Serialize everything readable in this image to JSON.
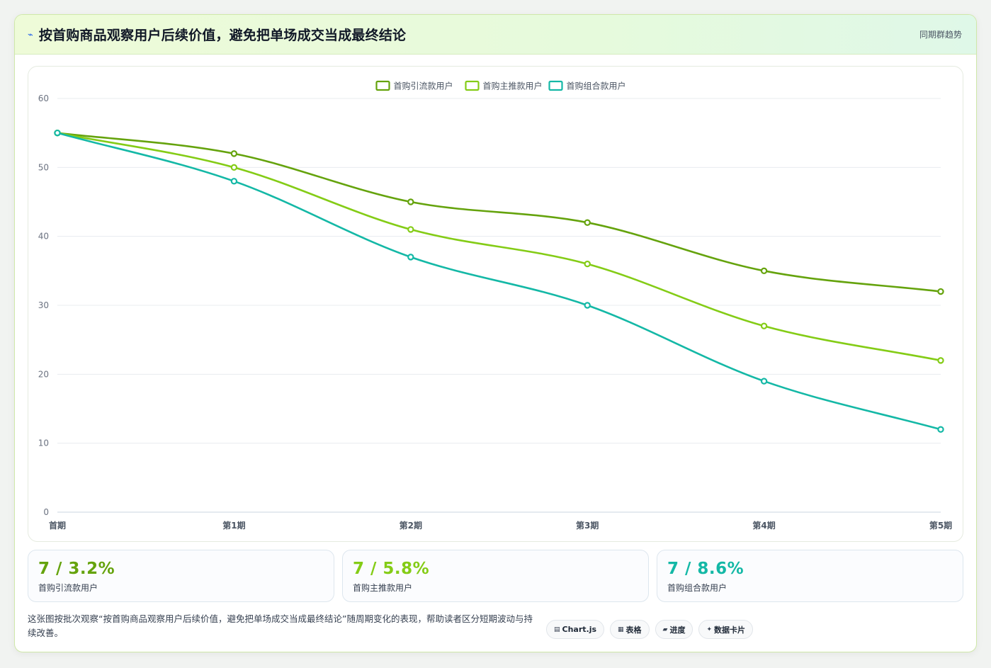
{
  "header": {
    "title": "按首购商品观察用户后续价值，避免把单场成交当成最终结论",
    "icon": "bolt-icon",
    "link": "同期群趋势"
  },
  "chart_data": {
    "type": "line",
    "categories": [
      "首期",
      "第1期",
      "第2期",
      "第3期",
      "第4期",
      "第5期"
    ],
    "ylim": [
      0,
      60
    ],
    "yticks": [
      0,
      10,
      20,
      30,
      40,
      50,
      60
    ],
    "grid": true,
    "legend_position": "top-center",
    "series": [
      {
        "name": "首购引流款用户",
        "color": "#65a30d",
        "values": [
          55,
          52,
          45,
          42,
          35,
          32
        ]
      },
      {
        "name": "首购主推款用户",
        "color": "#84cc16",
        "values": [
          55,
          50,
          41,
          36,
          27,
          22
        ]
      },
      {
        "name": "首购组合款用户",
        "color": "#14b8a6",
        "values": [
          55,
          48,
          37,
          30,
          19,
          12
        ]
      }
    ]
  },
  "stats": [
    {
      "value": "7 / 3.2%",
      "label": "首购引流款用户",
      "color": "#65a30d"
    },
    {
      "value": "7 / 5.8%",
      "label": "首购主推款用户",
      "color": "#84cc16"
    },
    {
      "value": "7 / 8.6%",
      "label": "首购组合款用户",
      "color": "#14b8a6"
    }
  ],
  "footer": {
    "note": "这张图按批次观察“按首购商品观察用户后续价值，避免把单场成交当成最终结论”随周期变化的表现，帮助读者区分短期波动与持续改善。",
    "tags": [
      {
        "icon": "▤",
        "label": "Chart.js"
      },
      {
        "icon": "▦",
        "label": "表格"
      },
      {
        "icon": "▰",
        "label": "进度"
      },
      {
        "icon": "✦",
        "label": "数据卡片"
      }
    ]
  }
}
